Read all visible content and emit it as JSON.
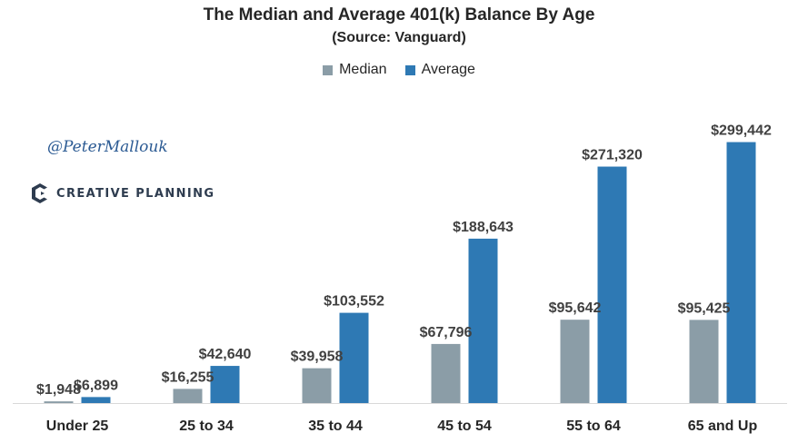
{
  "chart_data": {
    "type": "bar",
    "title": "The Median and Average 401(k) Balance By Age",
    "subtitle": "(Source: Vanguard)",
    "categories": [
      "Under 25",
      "25 to 34",
      "35 to 44",
      "45 to 54",
      "55 to 64",
      "65 and Up"
    ],
    "series": [
      {
        "name": "Median",
        "color": "#8b9da7",
        "values": [
          1948,
          16255,
          39958,
          67796,
          95642,
          95425
        ],
        "labels": [
          "$1,948",
          "$16,255",
          "$39,958",
          "$67,796",
          "$95,642",
          "$95,425"
        ]
      },
      {
        "name": "Average",
        "color": "#2e79b4",
        "values": [
          6899,
          42640,
          103552,
          188643,
          271320,
          299442
        ],
        "labels": [
          "$6,899",
          "$42,640",
          "$103,552",
          "$188,643",
          "$271,320",
          "$299,442"
        ]
      }
    ],
    "ylim": [
      0,
      300000
    ],
    "grid": false,
    "legend_position": "top-center"
  },
  "branding": {
    "handle": "@PeterMallouk",
    "logo_text": "CREATIVE PLANNING",
    "logo_icon": "creative-planning-logo-icon",
    "logo_color": "#2e3c4f"
  }
}
